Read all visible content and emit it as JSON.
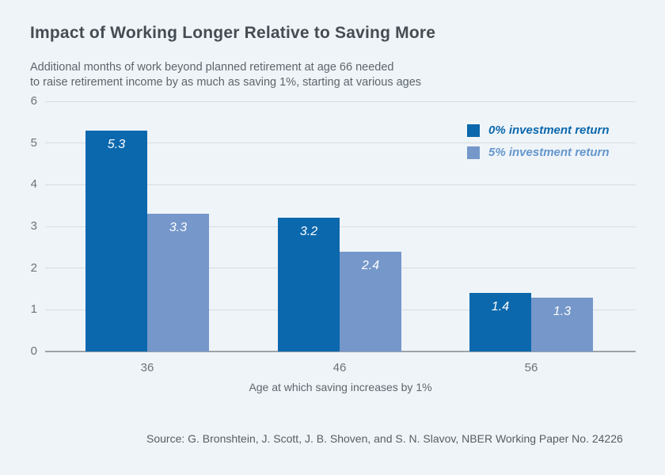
{
  "header": {
    "title": "Impact of Working Longer Relative to Saving More",
    "subtitle_line1": "Additional months of work beyond planned retirement at age 66 needed",
    "subtitle_line2": "to raise retirement income by as much as saving 1%, starting at various ages"
  },
  "chart_data": {
    "type": "bar",
    "categories": [
      "36",
      "46",
      "56"
    ],
    "series": [
      {
        "name": "0% investment return",
        "values": [
          5.3,
          3.2,
          1.4
        ],
        "color": "#0b68ad",
        "label_color": "#0b68ad"
      },
      {
        "name": "5% investment return",
        "values": [
          3.3,
          2.4,
          1.3
        ],
        "color": "#7597ca",
        "label_color": "#6496cc"
      }
    ],
    "xlabel": "Age at which saving increases by 1%",
    "ylabel": "",
    "ylim": [
      0,
      6
    ],
    "yticks": [
      0,
      1,
      2,
      3,
      4,
      5,
      6
    ],
    "grid": true,
    "legend_position": "top-right",
    "value_labels": true
  },
  "footer": {
    "source": "Source: G. Bronshtein, J. Scott, J. B. Shoven, and S. N. Slavov, NBER Working Paper No. 24226"
  },
  "colors": {
    "background": "#eff4f8",
    "gridline": "#d8dde2",
    "axis_line": "#9da3a9",
    "title_text": "#454c53"
  }
}
